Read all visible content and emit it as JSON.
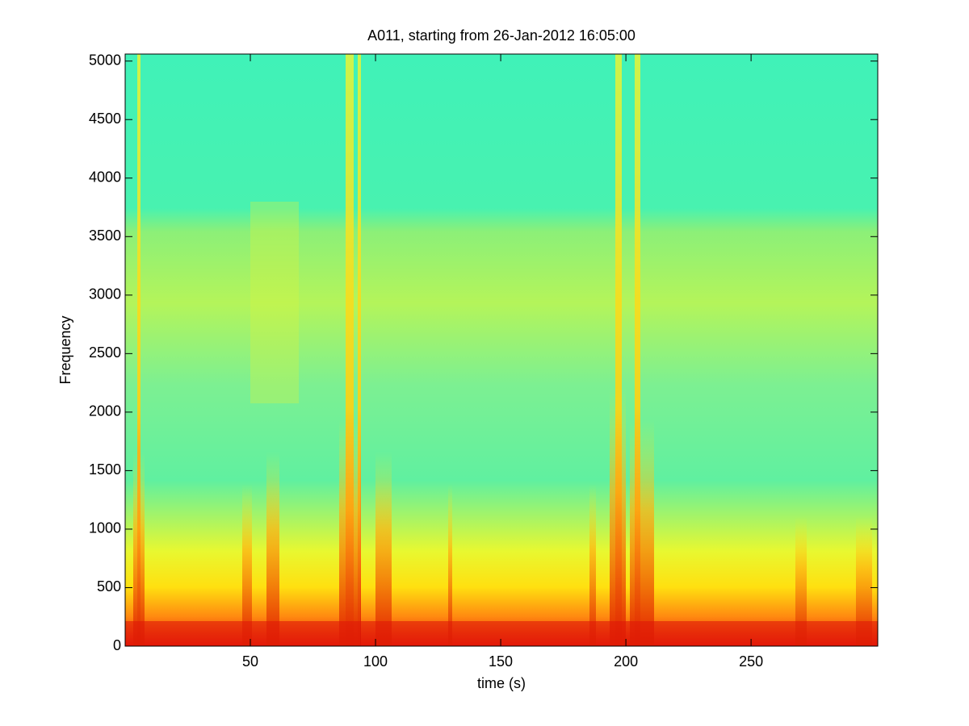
{
  "chart_data": {
    "type": "spectrogram",
    "title": "A011, starting from 26-Jan-2012 16:05:00",
    "x_label": "time (s)",
    "y_label": "Frequency",
    "xlim": [
      0,
      300.6
    ],
    "ylim": [
      0,
      5060
    ],
    "xticks": [
      50,
      100,
      150,
      200,
      250
    ],
    "yticks": [
      0,
      500,
      1000,
      1500,
      2000,
      2500,
      3000,
      3500,
      4000,
      4500,
      5000
    ]
  }
}
